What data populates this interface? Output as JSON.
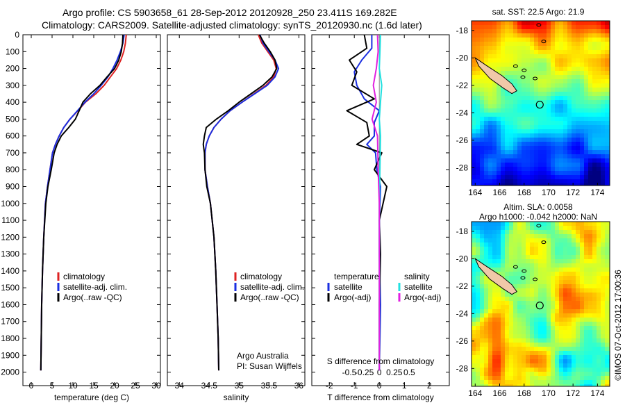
{
  "header": {
    "line1": "Argo profile: CS 5903658_61 28-Sep-2012 20120928_250 23.411S 169.282E",
    "line2": "Climatology: CARS2009. Satellite-adjusted climatology: synTS_20120930.nc (1.6d later)"
  },
  "colors": {
    "climatology": "#dd2222",
    "satellite": "#1a2ee0",
    "argo": "#000000",
    "satellite_s": "#22e0e0",
    "argo_s": "#e020e0",
    "land": "#f0c8a8"
  },
  "chart_data": [
    {
      "id": "temperature",
      "type": "line",
      "xlabel": "temperature (deg C)",
      "ylabel": "",
      "xlim": [
        -2,
        31
      ],
      "ylim": [
        2080,
        0
      ],
      "xticks": [
        0,
        5,
        10,
        15,
        20,
        25,
        30
      ],
      "yticks": [
        0,
        100,
        200,
        300,
        400,
        500,
        600,
        700,
        800,
        900,
        1000,
        1100,
        1200,
        1300,
        1400,
        1500,
        1600,
        1700,
        1800,
        1900,
        2000
      ],
      "legend": [
        "climatology",
        "satellite-adj. clim.",
        "Argo(..raw -QC)"
      ],
      "series": [
        {
          "name": "climatology",
          "color": "#dd2222",
          "x": [
            22.8,
            22.6,
            22.2,
            21.5,
            20.5,
            19.0,
            17.5,
            15.5,
            13.0,
            11.2,
            9.3,
            7.8,
            6.7,
            5.8,
            5.1,
            4.5,
            3.9,
            3.4,
            3.0,
            2.7,
            2.5,
            2.4,
            2.3
          ],
          "y": [
            0,
            50,
            100,
            150,
            200,
            250,
            300,
            350,
            400,
            450,
            500,
            550,
            600,
            650,
            700,
            800,
            900,
            1000,
            1200,
            1400,
            1600,
            1800,
            1990
          ]
        },
        {
          "name": "satellite-adj. clim.",
          "color": "#1a2ee0",
          "x": [
            22.3,
            22.0,
            21.4,
            20.6,
            19.6,
            18.4,
            16.8,
            15.0,
            12.9,
            11.1,
            9.3,
            7.8,
            6.7,
            5.8,
            5.1,
            4.5,
            3.9,
            3.4,
            3.0,
            2.7,
            2.5,
            2.4,
            2.3
          ],
          "y": [
            0,
            50,
            100,
            150,
            200,
            250,
            300,
            350,
            400,
            450,
            500,
            550,
            600,
            650,
            700,
            800,
            900,
            1000,
            1200,
            1400,
            1600,
            1800,
            1990
          ]
        },
        {
          "name": "Argo(..raw -QC)",
          "color": "#000000",
          "x": [
            22.0,
            21.9,
            21.6,
            21.0,
            20.0,
            18.2,
            16.5,
            14.2,
            12.4,
            11.5,
            10.6,
            9.0,
            7.2,
            6.2,
            5.5,
            4.8,
            4.0,
            3.5,
            3.0,
            2.7,
            2.5,
            2.4,
            2.3
          ],
          "y": [
            0,
            50,
            100,
            150,
            200,
            250,
            300,
            350,
            400,
            450,
            500,
            550,
            600,
            650,
            700,
            800,
            900,
            1000,
            1200,
            1400,
            1600,
            1800,
            1990
          ]
        }
      ]
    },
    {
      "id": "salinity",
      "type": "line",
      "xlabel": "salinity",
      "xlim": [
        33.8,
        36.1
      ],
      "ylim": [
        2080,
        0
      ],
      "xticks": [
        34,
        34.5,
        35,
        35.5,
        36
      ],
      "legend": [
        "climatology",
        "satellite-adj. clim.",
        "Argo(..raw -QC)"
      ],
      "annotation": [
        "Argo Australia",
        "PI: Susan Wijffels"
      ],
      "series": [
        {
          "name": "climatology",
          "color": "#dd2222",
          "x": [
            35.32,
            35.38,
            35.48,
            35.58,
            35.62,
            35.58,
            35.45,
            35.25,
            35.05,
            34.85,
            34.7,
            34.58,
            34.5,
            34.45,
            34.43,
            34.43,
            34.47,
            34.52,
            34.58,
            34.61,
            34.63,
            34.65,
            34.66
          ],
          "y": [
            0,
            50,
            100,
            150,
            200,
            250,
            300,
            350,
            400,
            450,
            500,
            550,
            600,
            650,
            700,
            800,
            900,
            1000,
            1200,
            1400,
            1600,
            1800,
            1990
          ]
        },
        {
          "name": "satellite-adj. clim.",
          "color": "#1a2ee0",
          "x": [
            35.35,
            35.4,
            35.5,
            35.6,
            35.66,
            35.6,
            35.47,
            35.26,
            35.05,
            34.85,
            34.7,
            34.58,
            34.5,
            34.45,
            34.43,
            34.43,
            34.47,
            34.52,
            34.58,
            34.61,
            34.63,
            34.65,
            34.66
          ],
          "y": [
            0,
            50,
            100,
            150,
            200,
            250,
            300,
            350,
            400,
            450,
            500,
            550,
            600,
            650,
            700,
            800,
            900,
            1000,
            1200,
            1400,
            1600,
            1800,
            1990
          ]
        },
        {
          "name": "Argo(..raw -QC)",
          "color": "#000000",
          "x": [
            35.34,
            35.42,
            35.52,
            35.6,
            35.63,
            35.55,
            35.4,
            35.2,
            35.0,
            34.82,
            34.62,
            34.45,
            34.42,
            34.4,
            34.42,
            34.43,
            34.46,
            34.52,
            34.58,
            34.61,
            34.63,
            34.65,
            34.66
          ],
          "y": [
            0,
            50,
            100,
            150,
            200,
            250,
            300,
            350,
            400,
            450,
            500,
            550,
            600,
            650,
            700,
            800,
            900,
            1000,
            1200,
            1400,
            1600,
            1800,
            1990
          ]
        }
      ]
    },
    {
      "id": "difference",
      "type": "line",
      "xlabel_bottom": "T difference from climatology",
      "xlabel_top": "S difference from climatology",
      "xlim": [
        -2.7,
        2.8
      ],
      "ylim": [
        2080,
        0
      ],
      "xticks_t": [
        -2,
        -1,
        0,
        1,
        2
      ],
      "xticks_s": [
        -0.5,
        -0.25,
        0,
        0.25,
        0.5
      ],
      "legend_t": {
        "title": "temperature",
        "items": [
          "satellite",
          "Argo(-adj)"
        ]
      },
      "legend_s": {
        "title": "salinity",
        "items": [
          "satellite",
          "Argo(-adj)"
        ]
      },
      "series": [
        {
          "name": "T satellite",
          "color": "#1a2ee0",
          "x": [
            -0.3,
            -0.3,
            -0.7,
            -1.0,
            -0.9,
            -0.6,
            0.0,
            -0.2,
            -0.2,
            -0.5,
            -0.15,
            -0.1,
            0.05,
            0.0,
            0.0,
            0.05,
            0.0
          ],
          "y": [
            0,
            80,
            150,
            220,
            300,
            380,
            450,
            520,
            600,
            650,
            700,
            800,
            900,
            1100,
            1300,
            1600,
            1990
          ]
        },
        {
          "name": "T Argo(-adj)",
          "color": "#000000",
          "x": [
            -0.6,
            -0.5,
            -1.2,
            -0.9,
            -1.1,
            -0.2,
            -1.3,
            -0.5,
            -0.4,
            -0.9,
            0.1,
            -0.2,
            0.3,
            0.0,
            0.05,
            0.0,
            0.0
          ],
          "y": [
            0,
            80,
            150,
            220,
            300,
            380,
            450,
            520,
            600,
            650,
            700,
            800,
            900,
            1100,
            1300,
            1600,
            1990
          ]
        },
        {
          "name": "S satellite",
          "color": "#22e0e0",
          "x": [
            0.02,
            0.01,
            0.0,
            0.04,
            0.02,
            0.0,
            0.02,
            0.01,
            0.0,
            0.0,
            0.0
          ],
          "y": [
            0,
            100,
            200,
            300,
            400,
            500,
            600,
            800,
            1000,
            1400,
            1990
          ]
        },
        {
          "name": "S Argo(-adj)",
          "color": "#e020e0",
          "x": [
            -0.03,
            -0.02,
            -0.05,
            -0.1,
            -0.05,
            -0.12,
            -0.03,
            -0.02,
            0.0,
            0.0,
            0.0
          ],
          "y": [
            0,
            100,
            200,
            300,
            400,
            500,
            600,
            800,
            1000,
            1400,
            1990
          ]
        }
      ]
    },
    {
      "id": "sst_map",
      "type": "heatmap",
      "title": "sat. SST: 22.5  Argo: 21.9",
      "xticks": [
        164,
        166,
        168,
        170,
        172,
        174
      ],
      "yticks": [
        -18,
        -20,
        -22,
        -24,
        -26,
        -28
      ],
      "xlim": [
        163.7,
        175.0
      ],
      "ylim": [
        -29.3,
        -17.3
      ],
      "marker": {
        "lon": 169.28,
        "lat": -23.41
      }
    },
    {
      "id": "sla_map",
      "type": "heatmap",
      "title": "Altim. SLA: 0.0058",
      "subtitle": "Argo h1000: -0.042  h2000: NaN",
      "xticks": [
        164,
        166,
        168,
        170,
        172,
        174
      ],
      "yticks": [
        -18,
        -20,
        -22,
        -24,
        -26,
        -28
      ],
      "xlim": [
        163.7,
        175.0
      ],
      "ylim": [
        -29.3,
        -17.3
      ],
      "marker": {
        "lon": 169.28,
        "lat": -23.41
      }
    }
  ],
  "footer": {
    "credit": "©IMOS 07-Oct-2012 17:00:36"
  }
}
